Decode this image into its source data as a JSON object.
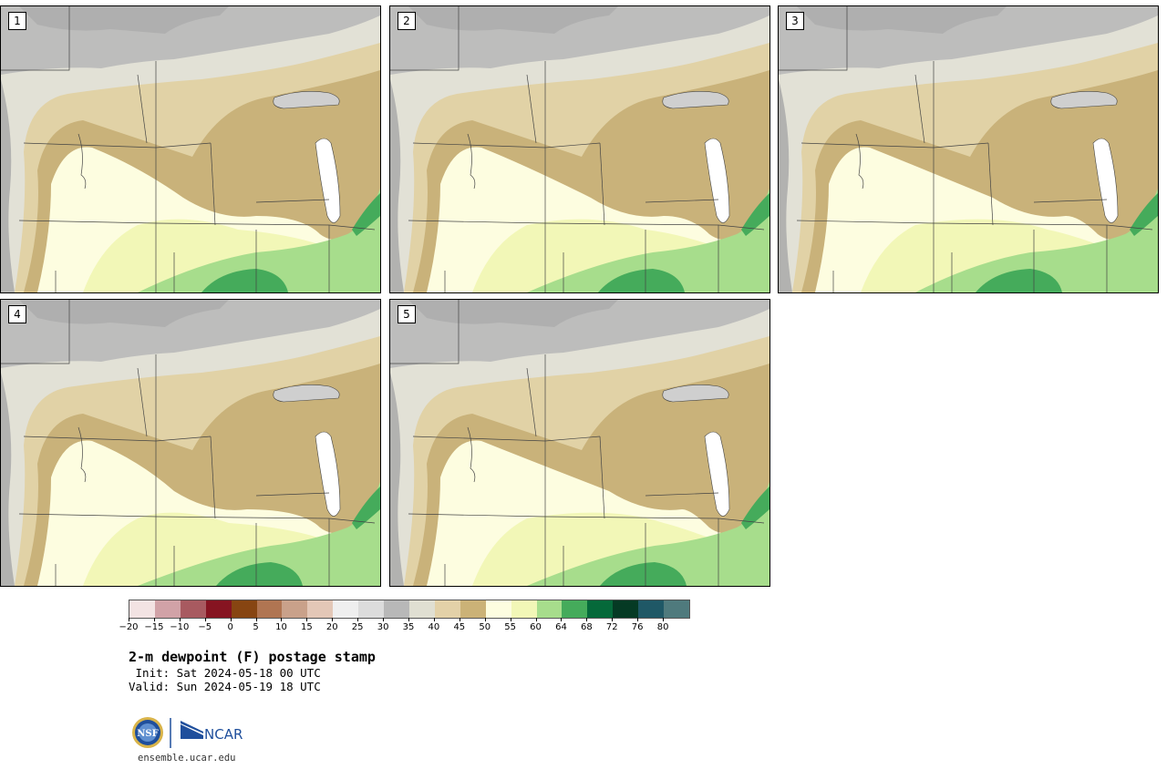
{
  "title": "2-m dewpoint (F) postage stamp",
  "init": " Init: Sat 2024-05-18 00 UTC",
  "valid": "Valid: Sun 2024-05-19 18 UTC",
  "site": "ensemble.ucar.edu",
  "logos": {
    "nsf": "NSF",
    "ncar": "NCAR"
  },
  "panels": [
    {
      "label": "1"
    },
    {
      "label": "2"
    },
    {
      "label": "3"
    },
    {
      "label": "4"
    },
    {
      "label": "5"
    }
  ],
  "colorbar": {
    "ticks": [
      "−20",
      "−15",
      "−10",
      "−5",
      "0",
      "5",
      "10",
      "15",
      "20",
      "25",
      "30",
      "35",
      "40",
      "45",
      "50",
      "55",
      "60",
      "64",
      "68",
      "72",
      "76",
      "80"
    ],
    "colors": [
      "#f3e3e3",
      "#d1a2a7",
      "#a85a60",
      "#861421",
      "#874512",
      "#b07552",
      "#c9a18a",
      "#e3c7b7",
      "#efefef",
      "#dcdcdc",
      "#b8b8b8",
      "#e0dfd2",
      "#e3d1a8",
      "#cbb277",
      "#fdfde0",
      "#f2f7b7",
      "#a7dd8c",
      "#45ab5b",
      "#05693a",
      "#053a24",
      "#1f5866",
      "#4f7a7d"
    ]
  },
  "colors": {
    "dry": "#b9b9b9",
    "light": "#e2e1d6",
    "tan": "#e1d2a6",
    "brown": "#c9b27a",
    "cream": "#fdfde0",
    "pale_green": "#f2f7b7",
    "green": "#a7dd8c",
    "mid_green": "#45ab5b",
    "borders": "#444444"
  }
}
